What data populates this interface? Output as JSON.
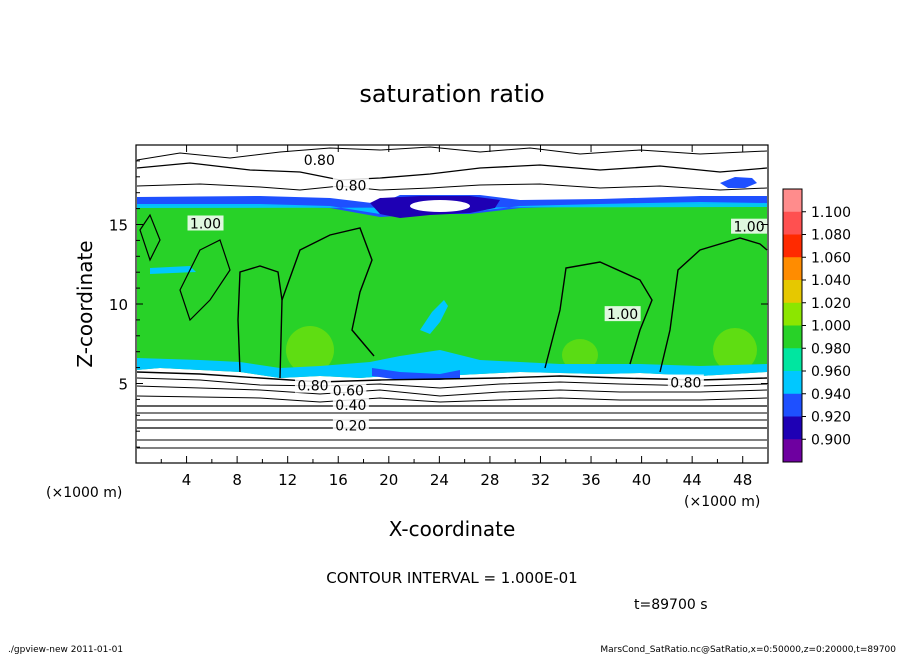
{
  "chart_data": {
    "type": "heatmap",
    "title": "saturation ratio",
    "xlabel": "X-coordinate",
    "ylabel": "Z-coordinate",
    "x_unit_left": "(×1000 m)",
    "x_unit_right": "(×1000 m)",
    "xlim": [
      0,
      50
    ],
    "ylim": [
      0,
      20
    ],
    "x_ticks": [
      "4",
      "8",
      "12",
      "16",
      "20",
      "24",
      "28",
      "32",
      "36",
      "40",
      "44",
      "48"
    ],
    "x_tick_values": [
      4,
      8,
      12,
      16,
      20,
      24,
      28,
      32,
      36,
      40,
      44,
      48
    ],
    "y_ticks": [
      "5",
      "10",
      "15"
    ],
    "y_tick_values": [
      5,
      10,
      15
    ],
    "contour_labels": [
      {
        "text": "0.80",
        "x": 14.5,
        "y": 19.0
      },
      {
        "text": "0.80",
        "x": 17.0,
        "y": 17.4
      },
      {
        "text": "1.00",
        "x": 5.5,
        "y": 15.0
      },
      {
        "text": "1.00",
        "x": 48.5,
        "y": 14.8
      },
      {
        "text": "1.00",
        "x": 38.5,
        "y": 9.3
      },
      {
        "text": "0.80",
        "x": 14.0,
        "y": 4.8
      },
      {
        "text": "0.60",
        "x": 16.8,
        "y": 4.5
      },
      {
        "text": "0.40",
        "x": 17.0,
        "y": 3.6
      },
      {
        "text": "0.20",
        "x": 17.0,
        "y": 2.3
      },
      {
        "text": "0.80",
        "x": 43.5,
        "y": 5.0
      }
    ],
    "colorbar": {
      "levels": [
        "1.100",
        "1.080",
        "1.060",
        "1.040",
        "1.020",
        "1.000",
        "0.980",
        "0.960",
        "0.940",
        "0.920",
        "0.900"
      ],
      "colors": [
        "#ff8c8c",
        "#ff5050",
        "#ff2a00",
        "#ff8c00",
        "#e6c800",
        "#8ce600",
        "#28d228",
        "#00e6a0",
        "#00c8ff",
        "#1e50ff",
        "#1e00b4",
        "#6e00a0"
      ]
    },
    "contour_interval": "CONTOUR INTERVAL = 1.000E-01",
    "time_label": "t=89700 s"
  },
  "footer": {
    "left": "./gpview-new   2011-01-01",
    "right": "MarsCond_SatRatio.nc@SatRatio,x=0:50000,z=0:20000,t=89700"
  }
}
